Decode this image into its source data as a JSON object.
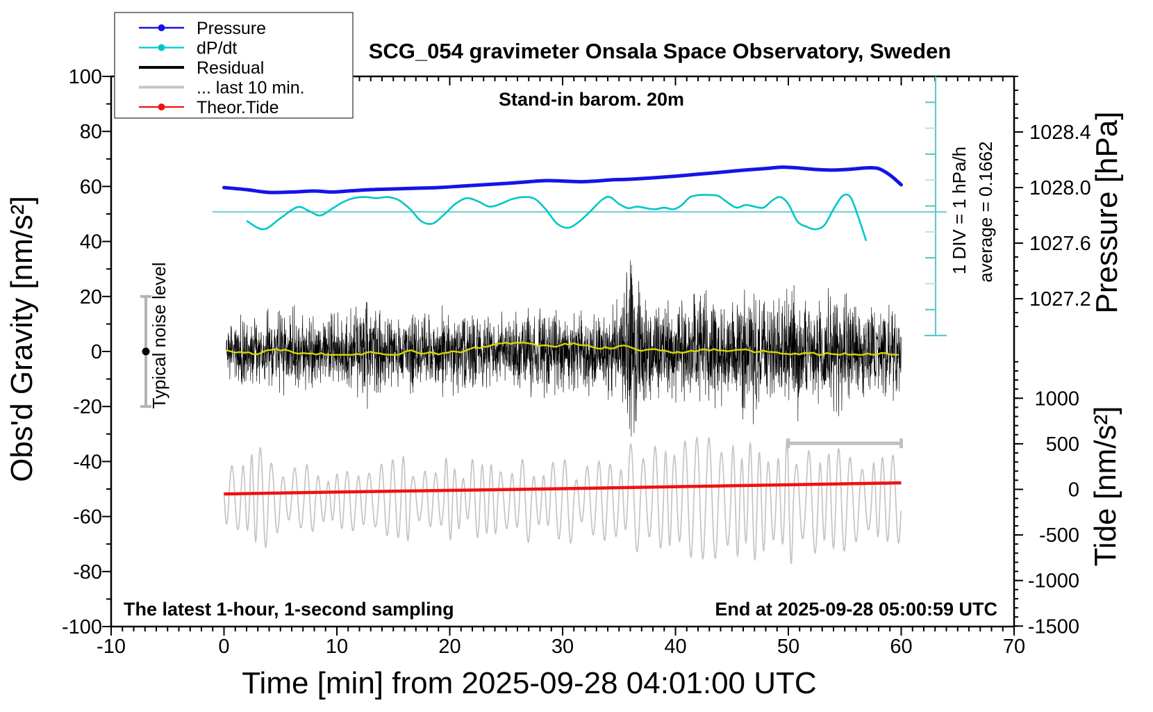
{
  "title": "SCG_054 gravimeter Onsala Space Observatory, Sweden",
  "annotations": {
    "barometer": "Stand-in barom. 20m",
    "sampling": "The latest 1-hour, 1-second sampling",
    "end_time": "End at 2025-09-28 05:00:59 UTC",
    "div_scale": "1 DIV = 1 hPa/h",
    "average": "average = 0.1662",
    "noise_label": "Typical noise level"
  },
  "legend": {
    "items": [
      {
        "label": "Pressure",
        "color": "#1414e8",
        "marker": true,
        "width": 5
      },
      {
        "label": "dP/dt",
        "color": "#00c6c8",
        "marker": true,
        "width": 2.6
      },
      {
        "label": "Residual",
        "color": "#000000",
        "marker": false,
        "width": 4
      },
      {
        "label": "... last 10 min.",
        "color": "#c4c4c4",
        "marker": false,
        "width": 4
      },
      {
        "label": "Theor.Tide",
        "color": "#ee1111",
        "marker": true,
        "width": 2.6
      }
    ]
  },
  "axes": {
    "x": {
      "label": "Time [min] from 2025-09-28 04:01:00 UTC",
      "min": -10,
      "max": 70,
      "major_step": 10,
      "minor_step": 1,
      "tick_values": [
        -10,
        0,
        10,
        20,
        30,
        40,
        50,
        60,
        70
      ],
      "tick_labels": [
        "-10",
        "0",
        "10",
        "20",
        "30",
        "40",
        "50",
        "60",
        "70"
      ]
    },
    "gravity": {
      "label": "Obs'd Gravity [nm/s²]",
      "min": -100,
      "max": 100,
      "major_step": 20,
      "minor_step": 10,
      "tick_values": [
        100,
        80,
        60,
        40,
        20,
        0,
        -20,
        -40,
        -60,
        -80,
        -100
      ],
      "tick_labels": [
        "100",
        "80",
        "60",
        "40",
        "20",
        "0",
        "-20",
        "-40",
        "-60",
        "-80",
        "-100"
      ]
    },
    "pressure": {
      "label": "Pressure [hPa]",
      "tick_values": [
        1028.4,
        1028.0,
        1027.6,
        1027.2
      ],
      "tick_labels": [
        "1028.4",
        "1028.0",
        "1027.6",
        "1027.2"
      ],
      "minor_step": 0.1
    },
    "tide": {
      "label": "Tide [nm/s²]",
      "tick_values": [
        1000,
        500,
        0,
        -500,
        -1000,
        -1500
      ],
      "tick_labels": [
        "1000",
        "500",
        "0",
        "-500",
        "-1000",
        "-1500"
      ],
      "minor_step": 100
    }
  },
  "chart_data": {
    "type": "line",
    "x_range_min": [
      -10,
      70
    ],
    "grid": false,
    "legend_position": "top-left",
    "series": {
      "pressure": {
        "name": "Pressure",
        "color": "#1414e8",
        "unit": "hPa",
        "points": [
          [
            0,
            1028.0
          ],
          [
            2,
            1027.985
          ],
          [
            4,
            1027.965
          ],
          [
            6,
            1027.968
          ],
          [
            8,
            1027.975
          ],
          [
            9.5,
            1027.968
          ],
          [
            11,
            1027.975
          ],
          [
            13,
            1027.985
          ],
          [
            15,
            1027.99
          ],
          [
            17,
            1027.995
          ],
          [
            19,
            1028.0
          ],
          [
            21,
            1028.01
          ],
          [
            23,
            1028.02
          ],
          [
            25,
            1028.03
          ],
          [
            27,
            1028.042
          ],
          [
            28.5,
            1028.05
          ],
          [
            30,
            1028.047
          ],
          [
            31.5,
            1028.042
          ],
          [
            33,
            1028.047
          ],
          [
            34.5,
            1028.056
          ],
          [
            36,
            1028.06
          ],
          [
            38,
            1028.07
          ],
          [
            40,
            1028.082
          ],
          [
            42,
            1028.096
          ],
          [
            44,
            1028.11
          ],
          [
            46,
            1028.125
          ],
          [
            48,
            1028.137
          ],
          [
            49.5,
            1028.147
          ],
          [
            51,
            1028.14
          ],
          [
            52.5,
            1028.13
          ],
          [
            54,
            1028.126
          ],
          [
            55.5,
            1028.132
          ],
          [
            57,
            1028.142
          ],
          [
            58,
            1028.136
          ],
          [
            59,
            1028.09
          ],
          [
            60,
            1028.02
          ]
        ]
      },
      "dpdt": {
        "name": "dP/dt",
        "color": "#00c6c8",
        "unit": "DIV relative to average (1 DIV = 1 hPa/h)",
        "average_value": 0.1662,
        "points": [
          [
            2,
            -0.17
          ],
          [
            3.5,
            -0.33
          ],
          [
            5,
            -0.12
          ],
          [
            6.5,
            0.09
          ],
          [
            7.5,
            0.02
          ],
          [
            8.5,
            -0.07
          ],
          [
            9.5,
            0.05
          ],
          [
            10.5,
            0.18
          ],
          [
            11.5,
            0.26
          ],
          [
            12.5,
            0.28
          ],
          [
            13.5,
            0.26
          ],
          [
            14.5,
            0.28
          ],
          [
            15.5,
            0.22
          ],
          [
            16.5,
            0.05
          ],
          [
            17.5,
            -0.18
          ],
          [
            18.5,
            -0.22
          ],
          [
            19.5,
            -0.05
          ],
          [
            20.5,
            0.15
          ],
          [
            21.5,
            0.26
          ],
          [
            22.5,
            0.2
          ],
          [
            23.5,
            0.1
          ],
          [
            24.5,
            0.15
          ],
          [
            25.5,
            0.24
          ],
          [
            26.5,
            0.28
          ],
          [
            27.5,
            0.25
          ],
          [
            28.5,
            0.05
          ],
          [
            29.5,
            -0.22
          ],
          [
            30.5,
            -0.3
          ],
          [
            31.5,
            -0.18
          ],
          [
            32.5,
            0.02
          ],
          [
            33.5,
            0.23
          ],
          [
            34.2,
            0.28
          ],
          [
            35,
            0.15
          ],
          [
            35.8,
            0.07
          ],
          [
            36.6,
            0.1
          ],
          [
            37.4,
            0.07
          ],
          [
            38.2,
            0.05
          ],
          [
            39,
            0.08
          ],
          [
            39.8,
            0.05
          ],
          [
            40.5,
            0.12
          ],
          [
            41.3,
            0.28
          ],
          [
            42.2,
            0.32
          ],
          [
            43,
            0.32
          ],
          [
            43.8,
            0.3
          ],
          [
            44.6,
            0.18
          ],
          [
            45.4,
            0.08
          ],
          [
            46.2,
            0.13
          ],
          [
            47,
            0.1
          ],
          [
            47.8,
            0.08
          ],
          [
            48.6,
            0.22
          ],
          [
            49.3,
            0.28
          ],
          [
            50,
            0.15
          ],
          [
            50.8,
            -0.18
          ],
          [
            51.6,
            -0.28
          ],
          [
            52.4,
            -0.33
          ],
          [
            53.2,
            -0.25
          ],
          [
            54,
            0.05
          ],
          [
            54.8,
            0.3
          ],
          [
            55.5,
            0.28
          ],
          [
            56.2,
            -0.1
          ],
          [
            56.9,
            -0.55
          ]
        ]
      },
      "residual": {
        "name": "Residual",
        "color": "#000000",
        "unit": "nm/s²",
        "seed": 20250928,
        "envelope": [
          [
            0.2,
            8
          ],
          [
            2,
            9
          ],
          [
            4,
            9
          ],
          [
            5.5,
            12
          ],
          [
            7,
            9
          ],
          [
            9,
            8
          ],
          [
            11,
            10
          ],
          [
            12.5,
            14
          ],
          [
            14,
            10
          ],
          [
            16,
            9
          ],
          [
            18,
            11
          ],
          [
            20,
            10
          ],
          [
            21.5,
            13
          ],
          [
            23,
            10
          ],
          [
            25,
            9
          ],
          [
            26.5,
            11
          ],
          [
            28,
            10
          ],
          [
            30,
            11
          ],
          [
            32,
            10
          ],
          [
            34,
            10
          ],
          [
            35.3,
            18
          ],
          [
            36,
            26
          ],
          [
            36.8,
            22
          ],
          [
            37.5,
            13
          ],
          [
            38.5,
            15
          ],
          [
            39.5,
            11
          ],
          [
            40.5,
            12
          ],
          [
            41.5,
            16
          ],
          [
            42.5,
            13
          ],
          [
            43.5,
            12
          ],
          [
            44.5,
            12
          ],
          [
            45.5,
            13
          ],
          [
            46.5,
            17
          ],
          [
            47.5,
            15
          ],
          [
            48.5,
            12
          ],
          [
            49.5,
            14
          ],
          [
            50.5,
            18
          ],
          [
            51.5,
            12
          ],
          [
            52.5,
            12
          ],
          [
            53.5,
            14
          ],
          [
            54.5,
            17
          ],
          [
            55.5,
            14
          ],
          [
            56.5,
            12
          ],
          [
            57.5,
            13
          ],
          [
            58.5,
            12
          ],
          [
            59.5,
            11
          ],
          [
            60,
            10
          ]
        ]
      },
      "residual_smoothed": {
        "name": "Residual (smoothed)",
        "color": "#d6d600",
        "center": 1.0,
        "seed": 424242
      },
      "last10": {
        "name": "... last 10 min.",
        "color": "#c4c4c4",
        "unit": "nm/s² (tide scale)",
        "seed": 777001,
        "period_min": 0.9,
        "center_keyframes": [
          [
            0,
            -80
          ],
          [
            10,
            -120
          ],
          [
            20,
            -100
          ],
          [
            30,
            -130
          ],
          [
            40,
            -90
          ],
          [
            50,
            -140
          ],
          [
            60,
            -110
          ]
        ],
        "amplitude_keyframes": [
          [
            0,
            450
          ],
          [
            3,
            560
          ],
          [
            6,
            500
          ],
          [
            9,
            300
          ],
          [
            12,
            480
          ],
          [
            15,
            530
          ],
          [
            18,
            420
          ],
          [
            21,
            500
          ],
          [
            24,
            430
          ],
          [
            27,
            520
          ],
          [
            30,
            480
          ],
          [
            33,
            530
          ],
          [
            36,
            690
          ],
          [
            39,
            560
          ],
          [
            42,
            710
          ],
          [
            45,
            600
          ],
          [
            48,
            760
          ],
          [
            51,
            650
          ],
          [
            54,
            710
          ],
          [
            57,
            560
          ],
          [
            60,
            520
          ]
        ]
      },
      "theor_tide": {
        "name": "Theor.Tide",
        "color": "#ee1111",
        "unit": "nm/s² (tide scale)",
        "points": [
          [
            0,
            -50
          ],
          [
            15,
            -20
          ],
          [
            30,
            8
          ],
          [
            45,
            40
          ],
          [
            60,
            72
          ]
        ]
      }
    },
    "last10_bar": {
      "t_start": 50,
      "t_end": 60,
      "tide_value": 505
    },
    "noise_marker": {
      "t": 3.1,
      "center_gravity": 0,
      "half_range_gravity": 20
    }
  },
  "colors": {
    "frame": "#000000",
    "scalebar_cyan": "#63c6c6",
    "scalebar_tick_light": "#b9e6e6",
    "avg_line_cyan": "#57c8c8",
    "last10_bar_gray": "#c0c0c0",
    "noise_bar_gray": "#b4b4b4",
    "background": "#ffffff"
  }
}
